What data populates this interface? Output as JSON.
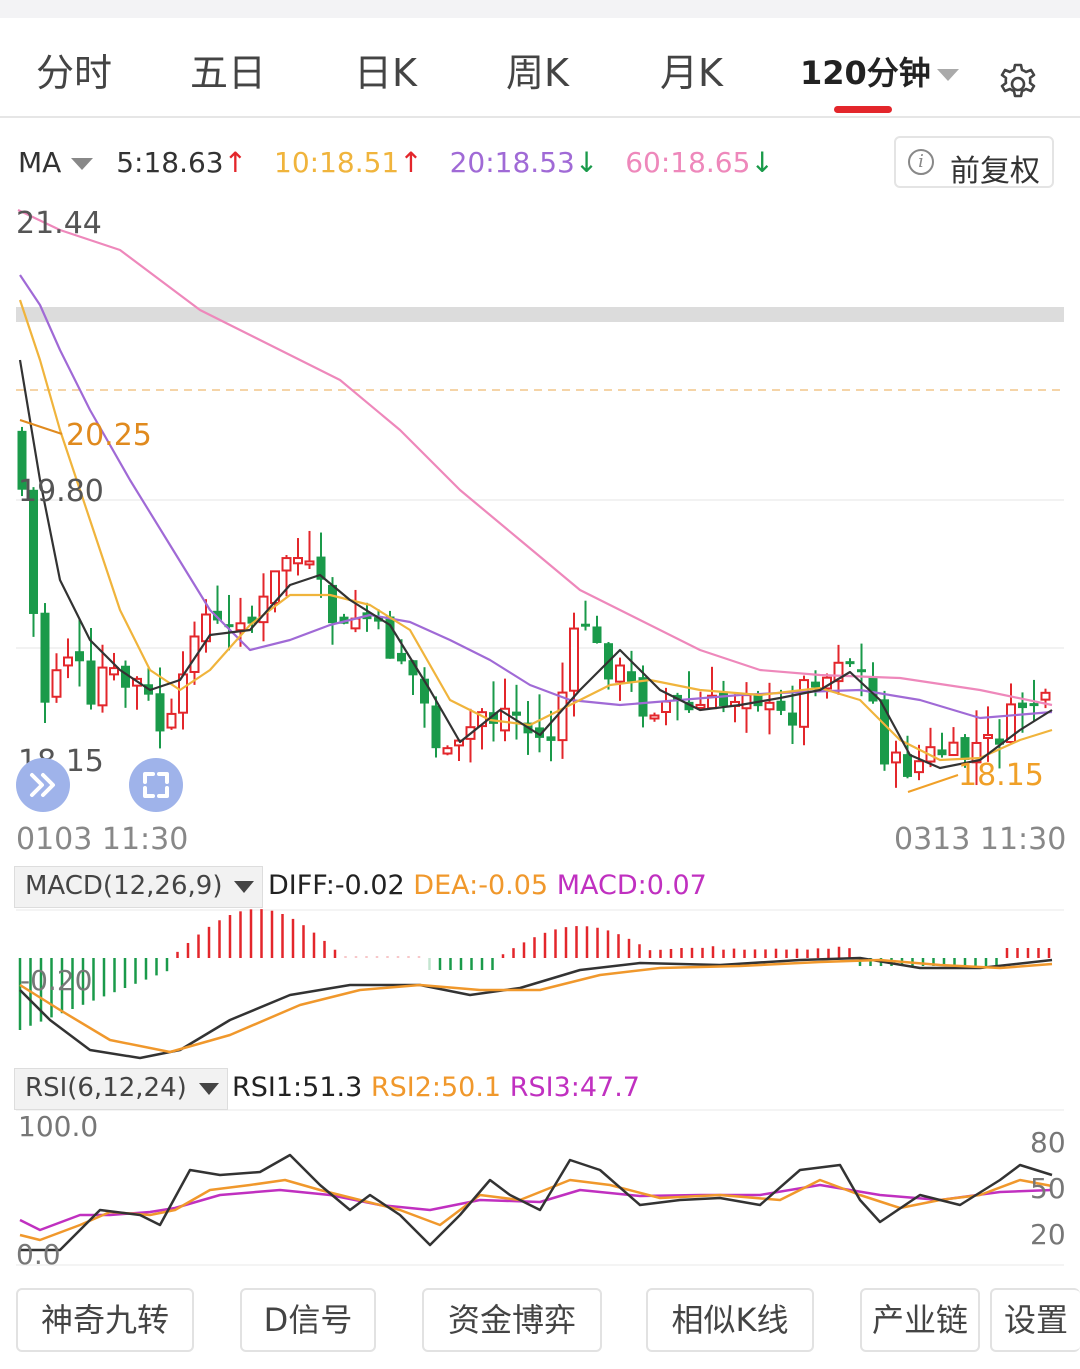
{
  "tabs": [
    {
      "label": "分时",
      "active": false
    },
    {
      "label": "五日",
      "active": false
    },
    {
      "label": "日K",
      "active": false
    },
    {
      "label": "周K",
      "active": false
    },
    {
      "label": "月K",
      "active": false
    },
    {
      "label": "120分钟",
      "active": true
    }
  ],
  "settings_icon": "gear-icon",
  "ma": {
    "label": "MA",
    "items": [
      {
        "text": "5:18.63",
        "arrow": "↑",
        "color": "#333333",
        "arrow_color": "#e3262b"
      },
      {
        "text": "10:18.51",
        "arrow": "↑",
        "color": "#f0b43c",
        "arrow_color": "#e3262b"
      },
      {
        "text": "20:18.53",
        "arrow": "↓",
        "color": "#a06ad6",
        "arrow_color": "#1a9a4a"
      },
      {
        "text": "60:18.65",
        "arrow": "↓",
        "color": "#ee88bb",
        "arrow_color": "#1a9a4a"
      }
    ],
    "adjust_button": "前复权"
  },
  "price_chart": {
    "max_label": "21.44",
    "level_label": "19.80",
    "min_label": "18.15",
    "high_marker": "20.25",
    "low_marker": "18.15",
    "date_start": "0103 11:30",
    "date_end": "0313 11:30"
  },
  "macd": {
    "selector": "MACD(12,26,9)",
    "diff": "DIFF:-0.02",
    "dea": "DEA:-0.05",
    "macd": "MACD:0.07",
    "axis_label": "-0.20"
  },
  "rsi": {
    "selector": "RSI(6,12,24)",
    "rsi1": "RSI1:51.3",
    "rsi2": "RSI2:50.1",
    "rsi3": "RSI3:47.7",
    "top_label": "100.0",
    "bottom_label": "0.0",
    "levels": [
      "80",
      "50",
      "20"
    ]
  },
  "bottom_buttons": [
    "神奇九转",
    "D信号",
    "资金博弈",
    "相似K线",
    "产业链",
    "设置"
  ],
  "colors": {
    "up": "#e3262b",
    "down": "#1a9a4a",
    "ma5": "#333333",
    "ma10": "#f0b43c",
    "ma20": "#a06ad6",
    "ma60": "#ee88bb",
    "dea": "#f0982c",
    "macd_label": "#c030c0"
  }
}
